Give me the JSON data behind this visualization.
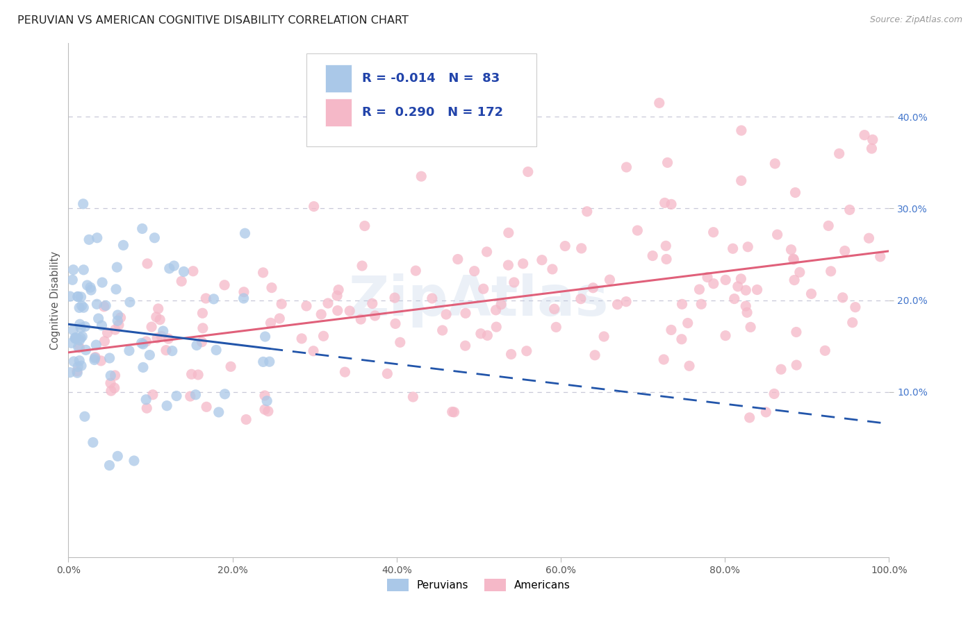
{
  "title": "PERUVIAN VS AMERICAN COGNITIVE DISABILITY CORRELATION CHART",
  "source": "Source: ZipAtlas.com",
  "ylabel": "Cognitive Disability",
  "legend_labels": [
    "Peruvians",
    "Americans"
  ],
  "legend_R": [
    -0.014,
    0.29
  ],
  "legend_N": [
    83,
    172
  ],
  "peruvian_color": "#aac8e8",
  "american_color": "#f5b8c8",
  "peruvian_line_color": "#2255aa",
  "american_line_color": "#e0607a",
  "background_color": "#ffffff",
  "grid_color": "#c8c8d8",
  "watermark": "ZipAtlas",
  "xlim": [
    0.0,
    1.0
  ],
  "ylim": [
    -0.08,
    0.48
  ],
  "yticks": [
    0.1,
    0.2,
    0.3,
    0.4
  ],
  "ytick_labels": [
    "10.0%",
    "20.0%",
    "30.0%",
    "40.0%"
  ],
  "xticks": [
    0.0,
    0.2,
    0.4,
    0.6,
    0.8,
    1.0
  ],
  "xtick_labels": [
    "0.0%",
    "20.0%",
    "40.0%",
    "60.0%",
    "80.0%",
    "100.0%"
  ]
}
